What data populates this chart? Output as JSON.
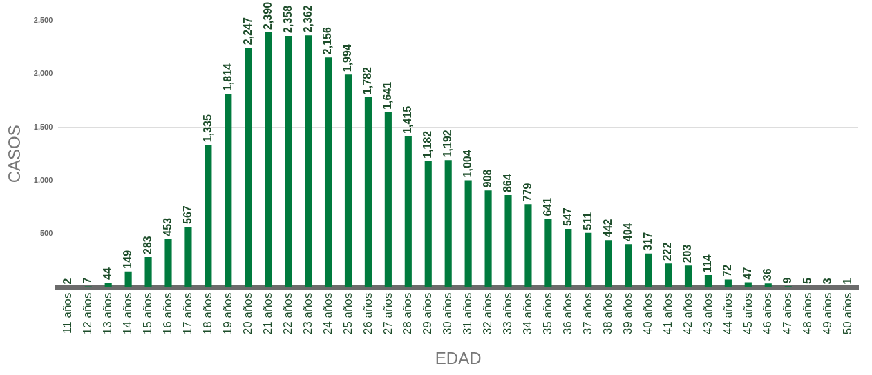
{
  "chart_data": {
    "type": "bar",
    "xlabel": "EDAD",
    "ylabel": "CASOS",
    "categories": [
      "11 años",
      "12 años",
      "13 años",
      "14 años",
      "15 años",
      "16 años",
      "17 años",
      "18 años",
      "19 años",
      "20 años",
      "21 años",
      "22 años",
      "23 años",
      "24 años",
      "25 años",
      "26 años",
      "27 años",
      "28 años",
      "29 años",
      "30 años",
      "31 años",
      "32 años",
      "33 años",
      "34 años",
      "35 años",
      "36 años",
      "37 años",
      "38 años",
      "39 años",
      "40 años",
      "41 años",
      "42 años",
      "43 años",
      "44 años",
      "45 años",
      "46 años",
      "47 años",
      "48 años",
      "49 años",
      "50 años"
    ],
    "values": [
      2,
      7,
      44,
      149,
      283,
      453,
      567,
      1335,
      1814,
      2247,
      2390,
      2358,
      2362,
      2156,
      1994,
      1782,
      1641,
      1415,
      1182,
      1192,
      1004,
      908,
      864,
      779,
      641,
      547,
      511,
      442,
      404,
      317,
      222,
      203,
      114,
      72,
      47,
      36,
      9,
      5,
      3,
      1
    ],
    "value_labels": [
      "2",
      "7",
      "44",
      "149",
      "283",
      "453",
      "567",
      "1,335",
      "1,814",
      "2,247",
      "2,390",
      "2,358",
      "2,362",
      "2,156",
      "1,994",
      "1,782",
      "1,641",
      "1,415",
      "1,182",
      "1,192",
      "1,004",
      "908",
      "864",
      "779",
      "641",
      "547",
      "511",
      "442",
      "404",
      "317",
      "222",
      "203",
      "114",
      "72",
      "47",
      "36",
      "9",
      "5",
      "3",
      "1"
    ],
    "color": "#007a3d",
    "ylim": [
      0,
      2500
    ],
    "yticks": [
      {
        "value": 500,
        "label": "500"
      },
      {
        "value": 1000,
        "label": "1,000"
      },
      {
        "value": 1500,
        "label": "1,500"
      },
      {
        "value": 2000,
        "label": "2,000"
      },
      {
        "value": 2500,
        "label": "2,500"
      }
    ],
    "grid": "y"
  }
}
